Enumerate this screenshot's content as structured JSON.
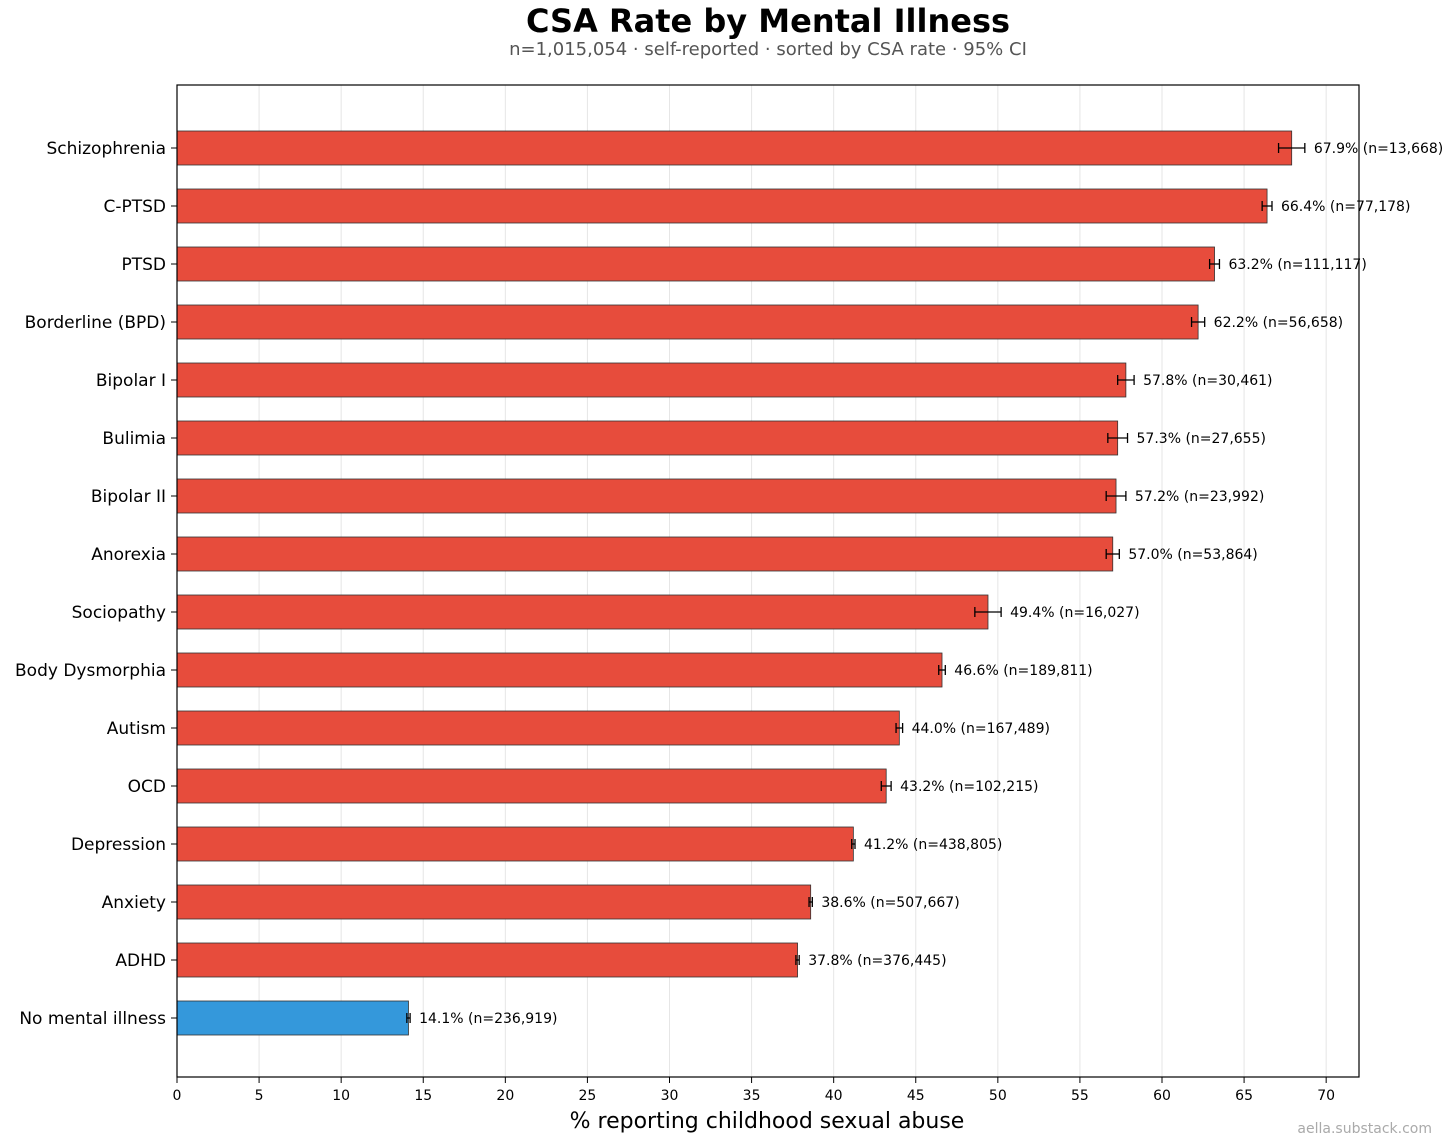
{
  "page": {
    "title": "CSA Rate by Mental Illness",
    "subtitle": "n=1,015,054 · self-reported · sorted by CSA rate · 95% CI",
    "watermark": "aella.substack.com"
  },
  "chart_data": {
    "type": "bar",
    "orientation": "horizontal",
    "title": "CSA Rate by Mental Illness",
    "xlabel": "% reporting childhood sexual abuse",
    "ylabel": "",
    "xlim": [
      0,
      72
    ],
    "xticks": [
      0,
      5,
      10,
      15,
      20,
      25,
      30,
      35,
      40,
      45,
      50,
      55,
      60,
      65,
      70
    ],
    "grid": "vertical",
    "colors": {
      "illness": "#e74c3c",
      "baseline": "#3498db",
      "edge": "#333333"
    },
    "bars": [
      {
        "category": "Schizophrenia",
        "value": 67.9,
        "ci": [
          67.1,
          68.7
        ],
        "label": "67.9% (n=13,668)",
        "group": "illness"
      },
      {
        "category": "C-PTSD",
        "value": 66.4,
        "ci": [
          66.1,
          66.7
        ],
        "label": "66.4% (n=77,178)",
        "group": "illness"
      },
      {
        "category": "PTSD",
        "value": 63.2,
        "ci": [
          62.9,
          63.5
        ],
        "label": "63.2% (n=111,117)",
        "group": "illness"
      },
      {
        "category": "Borderline (BPD)",
        "value": 62.2,
        "ci": [
          61.8,
          62.6
        ],
        "label": "62.2% (n=56,658)",
        "group": "illness"
      },
      {
        "category": "Bipolar I",
        "value": 57.8,
        "ci": [
          57.3,
          58.3
        ],
        "label": "57.8% (n=30,461)",
        "group": "illness"
      },
      {
        "category": "Bulimia",
        "value": 57.3,
        "ci": [
          56.7,
          57.9
        ],
        "label": "57.3% (n=27,655)",
        "group": "illness"
      },
      {
        "category": "Bipolar II",
        "value": 57.2,
        "ci": [
          56.6,
          57.8
        ],
        "label": "57.2% (n=23,992)",
        "group": "illness"
      },
      {
        "category": "Anorexia",
        "value": 57.0,
        "ci": [
          56.6,
          57.4
        ],
        "label": "57.0% (n=53,864)",
        "group": "illness"
      },
      {
        "category": "Sociopathy",
        "value": 49.4,
        "ci": [
          48.6,
          50.2
        ],
        "label": "49.4% (n=16,027)",
        "group": "illness"
      },
      {
        "category": "Body Dysmorphia",
        "value": 46.6,
        "ci": [
          46.4,
          46.8
        ],
        "label": "46.6% (n=189,811)",
        "group": "illness"
      },
      {
        "category": "Autism",
        "value": 44.0,
        "ci": [
          43.8,
          44.2
        ],
        "label": "44.0% (n=167,489)",
        "group": "illness"
      },
      {
        "category": "OCD",
        "value": 43.2,
        "ci": [
          42.9,
          43.5
        ],
        "label": "43.2% (n=102,215)",
        "group": "illness"
      },
      {
        "category": "Depression",
        "value": 41.2,
        "ci": [
          41.1,
          41.3
        ],
        "label": "41.2% (n=438,805)",
        "group": "illness"
      },
      {
        "category": "Anxiety",
        "value": 38.6,
        "ci": [
          38.5,
          38.7
        ],
        "label": "38.6% (n=507,667)",
        "group": "illness"
      },
      {
        "category": "ADHD",
        "value": 37.8,
        "ci": [
          37.7,
          37.9
        ],
        "label": "37.8% (n=376,445)",
        "group": "illness"
      },
      {
        "category": "No mental illness",
        "value": 14.1,
        "ci": [
          14.0,
          14.2
        ],
        "label": "14.1% (n=236,919)",
        "group": "baseline"
      }
    ]
  }
}
